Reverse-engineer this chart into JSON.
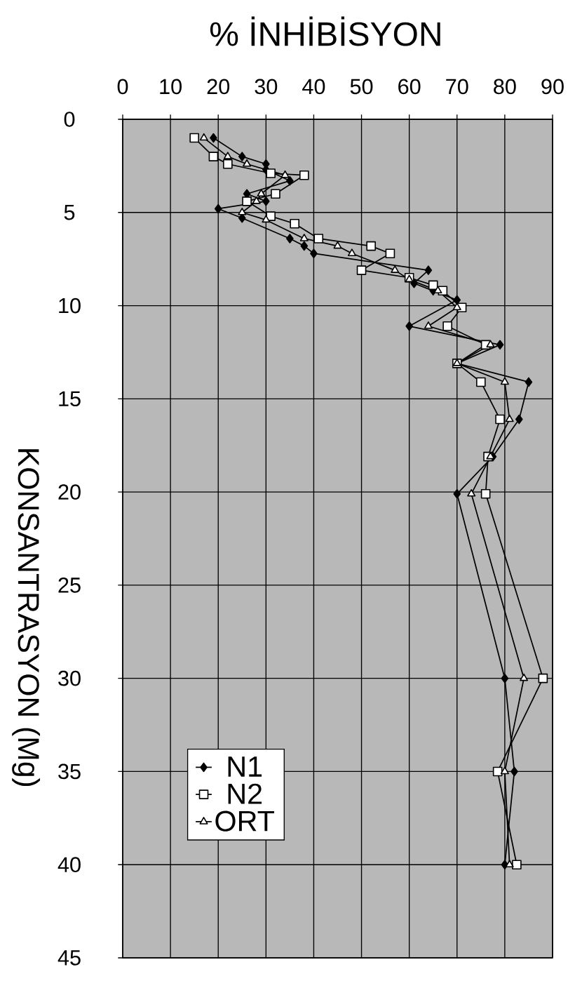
{
  "chart_data": {
    "type": "line",
    "xlabel": "% İNHİBİSYON",
    "ylabel": "KONSANTRASYON (Mg)",
    "xlim": [
      0,
      90
    ],
    "xticks": [
      0,
      10,
      20,
      30,
      40,
      50,
      60,
      70,
      80,
      90
    ],
    "ylim": [
      45,
      0
    ],
    "yticks": [
      0,
      5,
      10,
      15,
      20,
      25,
      30,
      35,
      40,
      45
    ],
    "grid": true,
    "legend": "bottom left",
    "series": [
      {
        "name": "N1",
        "color": "#000000",
        "marker": "diamond",
        "x": [
          19,
          25,
          30,
          30,
          35,
          26,
          30,
          20,
          25,
          35,
          38,
          40,
          64,
          61,
          65,
          70,
          60,
          79,
          70,
          85,
          83,
          77.5,
          70,
          80,
          82,
          80
        ],
        "values": [
          1,
          2,
          2.4,
          2.7,
          3.3,
          4,
          4.4,
          4.8,
          5.3,
          6.4,
          6.8,
          7.2,
          8.1,
          8.8,
          9.2,
          9.7,
          11.1,
          12.1,
          13.1,
          14.1,
          16.1,
          18.1,
          20.1,
          30,
          35,
          40
        ]
      },
      {
        "name": "N2",
        "color": "#000000",
        "marker": "square",
        "x": [
          15,
          19,
          22,
          31,
          38,
          32,
          26,
          31,
          36,
          41,
          52,
          56,
          50,
          60,
          65,
          67,
          71,
          68,
          76,
          70,
          75,
          79,
          76.5,
          76,
          88,
          78.5,
          82.5
        ],
        "values": [
          1,
          2,
          2.4,
          2.9,
          3,
          4,
          4.4,
          5.2,
          5.6,
          6.4,
          6.8,
          7.2,
          8.1,
          8.5,
          8.9,
          9.2,
          10.1,
          11.1,
          12.1,
          13.1,
          14.1,
          16.1,
          18.1,
          20.1,
          30,
          35,
          40
        ]
      },
      {
        "name": "ORT",
        "color": "#000000",
        "marker": "triangle",
        "x": [
          17,
          22,
          26,
          34,
          29,
          28,
          25,
          30,
          38,
          45,
          48,
          57,
          60,
          66,
          70,
          64,
          77,
          70,
          80,
          81,
          77,
          73,
          84,
          80,
          81
        ],
        "values": [
          1,
          2,
          2.4,
          3,
          4,
          4.4,
          5,
          5.4,
          6.4,
          6.8,
          7.2,
          8.1,
          8.6,
          9.2,
          10.1,
          11.1,
          12.1,
          13.1,
          14.1,
          16.1,
          18.1,
          20.1,
          30,
          35,
          40
        ]
      }
    ]
  }
}
